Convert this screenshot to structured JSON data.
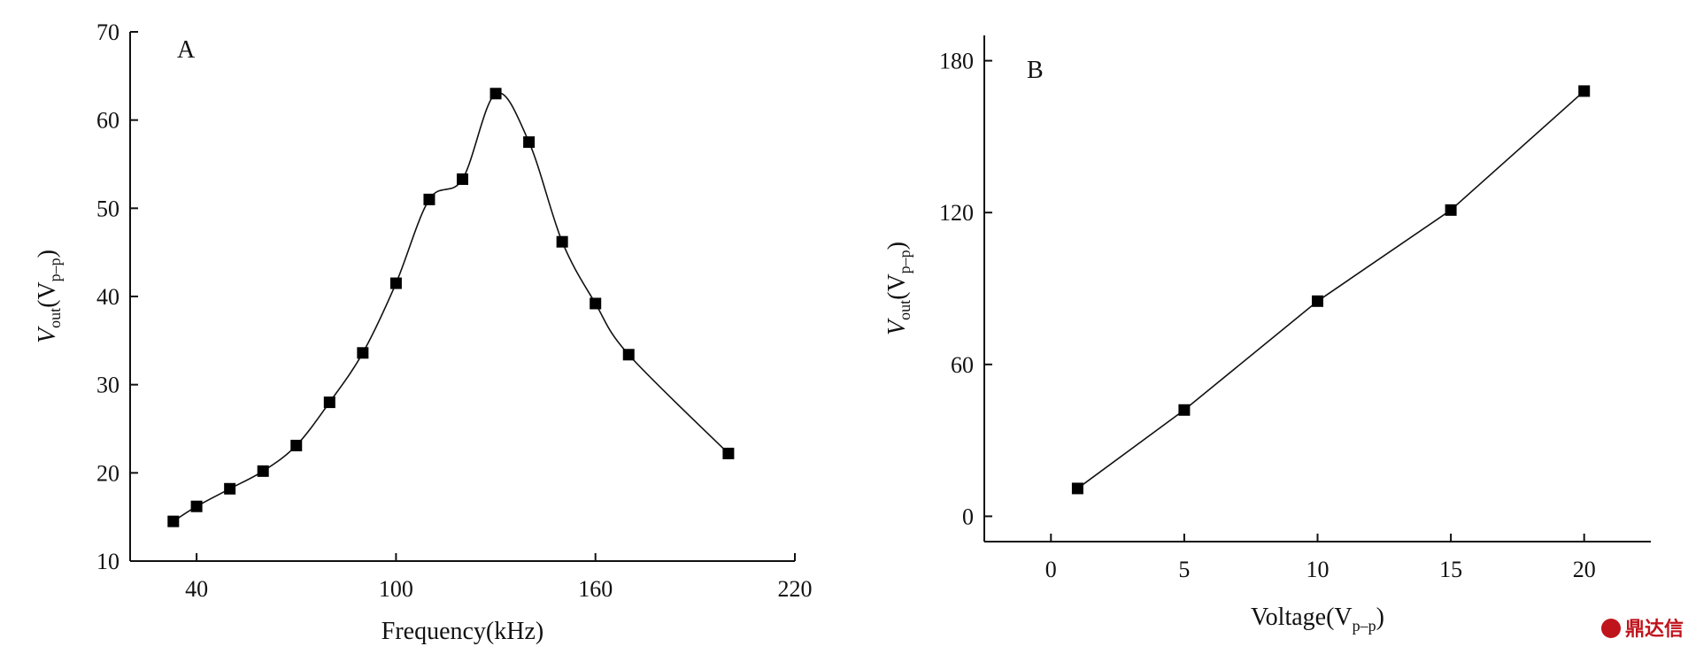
{
  "chart_data": [
    {
      "type": "line",
      "panel_label": "A",
      "title": "",
      "xlabel": "Frequency(kHz)",
      "ylabel": {
        "main": "V",
        "sub1": "out",
        "paren_open": "(V",
        "sub2": "p–p",
        "paren_close": ")"
      },
      "xlim": [
        20,
        220
      ],
      "ylim": [
        10,
        70
      ],
      "x_ticks": [
        40,
        100,
        160,
        220
      ],
      "y_ticks": [
        10,
        20,
        30,
        40,
        50,
        60,
        70
      ],
      "grid": false,
      "smooth": true,
      "series": [
        {
          "x": [
            33,
            40,
            50,
            60,
            70,
            80,
            90,
            100,
            110,
            120,
            130,
            140,
            150,
            160,
            170,
            200
          ],
          "y": [
            14.5,
            16.2,
            18.2,
            20.2,
            23.1,
            28.0,
            33.6,
            41.5,
            51.0,
            53.3,
            63.0,
            57.5,
            46.2,
            39.2,
            33.4,
            22.2
          ]
        }
      ]
    },
    {
      "type": "line",
      "panel_label": "B",
      "title": "",
      "xlabel": {
        "main": "Voltage(V",
        "sub": "p–p",
        "close": ")"
      },
      "ylabel": {
        "main": "V",
        "sub1": "out",
        "paren_open": "(V",
        "sub2": "p–p",
        "paren_close": ")"
      },
      "xlim": [
        -2.5,
        22.5
      ],
      "ylim": [
        -10,
        190
      ],
      "x_ticks": [
        0,
        5,
        10,
        15,
        20
      ],
      "y_ticks": [
        0,
        60,
        120,
        180
      ],
      "grid": false,
      "smooth": false,
      "series": [
        {
          "x": [
            1,
            5,
            10,
            15,
            20
          ],
          "y": [
            11,
            42,
            85,
            121,
            168
          ]
        }
      ]
    }
  ],
  "watermark": {
    "icon": "dingdaxin-logo-icon",
    "text": "鼎达信"
  }
}
